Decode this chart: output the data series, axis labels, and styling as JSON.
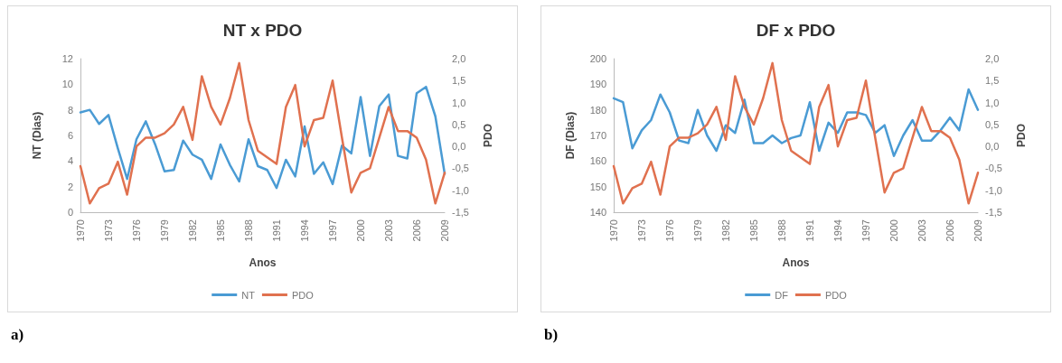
{
  "chart_data": [
    {
      "type": "line",
      "title": "NT x PDO",
      "xlabel": "Anos",
      "ylabel": "NT (Dias)",
      "y2label": "PDO",
      "categories": [
        "1970",
        null,
        null,
        "1973",
        null,
        null,
        "1976",
        null,
        null,
        "1979",
        null,
        null,
        "1982",
        null,
        null,
        "1985",
        null,
        null,
        "1988",
        null,
        null,
        "1991",
        null,
        null,
        "1994",
        null,
        null,
        "1997",
        null,
        null,
        "2000",
        null,
        null,
        "2003",
        null,
        null,
        "2006",
        null,
        null,
        "2009"
      ],
      "series": [
        {
          "name": "NT",
          "color": "#4a9bd4",
          "values": [
            7.8,
            8.0,
            6.9,
            7.6,
            5.0,
            2.6,
            5.7,
            7.1,
            5.3,
            3.2,
            3.3,
            5.6,
            4.5,
            4.1,
            2.6,
            5.3,
            3.7,
            2.4,
            5.7,
            3.6,
            3.3,
            1.9,
            4.1,
            2.8,
            6.7,
            3.0,
            3.9,
            2.2,
            5.2,
            4.6,
            9.0,
            4.4,
            8.3,
            9.2,
            4.4,
            4.2,
            9.3,
            9.8,
            7.5,
            3.0
          ]
        },
        {
          "name": "PDO",
          "color": "#e0714f",
          "axis": "y2",
          "values": [
            -0.45,
            -1.3,
            -0.95,
            -0.85,
            -0.35,
            -1.1,
            0.0,
            0.2,
            0.2,
            0.3,
            0.5,
            0.9,
            0.15,
            1.6,
            0.9,
            0.5,
            1.1,
            1.9,
            0.6,
            -0.1,
            -0.25,
            -0.4,
            0.9,
            1.4,
            0.0,
            0.6,
            0.65,
            1.5,
            0.2,
            -1.05,
            -0.6,
            -0.5,
            0.2,
            0.9,
            0.35,
            0.35,
            0.2,
            -0.3,
            -1.3,
            -0.6
          ]
        }
      ],
      "ylim": [
        0,
        12
      ],
      "yticks": [
        0,
        2,
        4,
        6,
        8,
        10,
        12
      ],
      "y2lim": [
        -1.5,
        2.0
      ],
      "y2ticks": [
        {
          "value": -1.5,
          "label": "-1,5"
        },
        {
          "value": -1.0,
          "label": "-1,0"
        },
        {
          "value": -0.5,
          "label": "-0,5"
        },
        {
          "value": 0,
          "label": "0,0"
        },
        {
          "value": 0.5,
          "label": "0,5"
        },
        {
          "value": 1.0,
          "label": "1,0"
        },
        {
          "value": 1.5,
          "label": "1,5"
        },
        {
          "value": 2.0,
          "label": "2,0"
        }
      ],
      "legend": "bottom",
      "marker": "none",
      "line_style": "solid",
      "annotations": [
        "a)"
      ]
    },
    {
      "type": "line",
      "title": "DF x PDO",
      "xlabel": "Anos",
      "ylabel": "DF (Dias)",
      "y2label": "PDO",
      "categories": [
        "1970",
        null,
        null,
        "1973",
        null,
        null,
        "1976",
        null,
        null,
        "1979",
        null,
        null,
        "1982",
        null,
        null,
        "1985",
        null,
        null,
        "1988",
        null,
        null,
        "1991",
        null,
        null,
        "1994",
        null,
        null,
        "1997",
        null,
        null,
        "2000",
        null,
        null,
        "2003",
        null,
        null,
        "2006",
        null,
        null,
        "2009"
      ],
      "series": [
        {
          "name": "DF",
          "color": "#4a9bd4",
          "values": [
            184.5,
            183,
            165,
            172,
            176,
            186,
            179,
            168,
            167,
            180,
            170,
            164,
            174,
            171,
            184,
            167,
            167,
            170,
            167,
            169,
            170,
            183,
            164,
            175,
            171,
            179,
            179,
            178,
            171,
            174,
            162,
            170,
            176,
            168,
            168,
            172,
            177,
            172,
            188,
            180
          ]
        },
        {
          "name": "PDO",
          "color": "#e0714f",
          "axis": "y2",
          "values": [
            -0.45,
            -1.3,
            -0.95,
            -0.85,
            -0.35,
            -1.1,
            0.0,
            0.2,
            0.2,
            0.3,
            0.5,
            0.9,
            0.15,
            1.6,
            0.9,
            0.5,
            1.1,
            1.9,
            0.6,
            -0.1,
            -0.25,
            -0.4,
            0.9,
            1.4,
            0.0,
            0.6,
            0.65,
            1.5,
            0.2,
            -1.05,
            -0.6,
            -0.5,
            0.2,
            0.9,
            0.35,
            0.35,
            0.2,
            -0.3,
            -1.3,
            -0.6
          ]
        }
      ],
      "ylim": [
        140,
        200
      ],
      "yticks": [
        140,
        150,
        160,
        170,
        180,
        190,
        200
      ],
      "y2lim": [
        -1.5,
        2.0
      ],
      "y2ticks": [
        {
          "value": -1.5,
          "label": "-1,5"
        },
        {
          "value": -1.0,
          "label": "-1,0"
        },
        {
          "value": -0.5,
          "label": "-0,5"
        },
        {
          "value": 0,
          "label": "0,0"
        },
        {
          "value": 0.5,
          "label": "0,5"
        },
        {
          "value": 1.0,
          "label": "1,0"
        },
        {
          "value": 1.5,
          "label": "1,5"
        },
        {
          "value": 2.0,
          "label": "2,0"
        }
      ],
      "legend": "bottom",
      "marker": "none",
      "line_style": "solid",
      "annotations": [
        "b)"
      ]
    }
  ]
}
